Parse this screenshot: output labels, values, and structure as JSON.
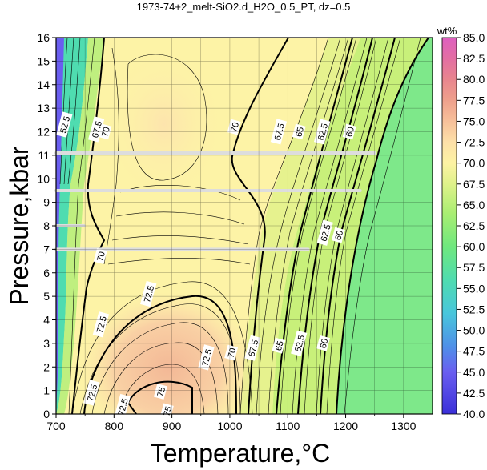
{
  "chart_data": {
    "type": "heatmap",
    "title": "1973-74+2_melt-SiO2.d_H2O_0.5_PT, dz=0.5",
    "xlabel": "Temperature,°C",
    "ylabel": "Pressure,kbar",
    "colorbar_label": "wt%",
    "xlim": [
      700,
      1350
    ],
    "ylim": [
      0,
      16
    ],
    "x_ticks": [
      700,
      800,
      900,
      1000,
      1100,
      1200,
      1300
    ],
    "y_ticks": [
      0,
      1,
      2,
      3,
      4,
      5,
      6,
      7,
      8,
      9,
      10,
      11,
      12,
      13,
      14,
      15,
      16
    ],
    "colorbar_range": [
      40.0,
      85.0
    ],
    "colorbar_ticks": [
      "40.0",
      "42.5",
      "45.0",
      "47.5",
      "50.0",
      "52.5",
      "55.0",
      "57.5",
      "60.0",
      "62.5",
      "65.0",
      "67.5",
      "70.0",
      "72.5",
      "75.0",
      "77.5",
      "80.0",
      "82.5",
      "85.0"
    ],
    "colorbar_stops": [
      {
        "v": 40.0,
        "c": "#3a2fd8"
      },
      {
        "v": 45.0,
        "c": "#6a5ef0"
      },
      {
        "v": 48.0,
        "c": "#4f8fe8"
      },
      {
        "v": 52.0,
        "c": "#48c6dc"
      },
      {
        "v": 56.0,
        "c": "#4fdcb0"
      },
      {
        "v": 60.0,
        "c": "#6fe87e"
      },
      {
        "v": 64.0,
        "c": "#a9ee72"
      },
      {
        "v": 67.5,
        "c": "#dff28a"
      },
      {
        "v": 70.0,
        "c": "#fdf3a4"
      },
      {
        "v": 72.5,
        "c": "#fde0a8"
      },
      {
        "v": 75.0,
        "c": "#f7c09a"
      },
      {
        "v": 77.5,
        "c": "#eea08c"
      },
      {
        "v": 80.0,
        "c": "#e8858e"
      },
      {
        "v": 82.5,
        "c": "#e36ea3"
      },
      {
        "v": 85.0,
        "c": "#de5fc0"
      }
    ],
    "contour_labels": [
      {
        "text": "70",
        "x": 1008,
        "y": 12.2
      },
      {
        "text": "67.5",
        "x": 1085,
        "y": 12.0
      },
      {
        "text": "65",
        "x": 1120,
        "y": 12.0
      },
      {
        "text": "62.5",
        "x": 1160,
        "y": 12.0
      },
      {
        "text": "60",
        "x": 1207,
        "y": 12.0
      },
      {
        "text": "70",
        "x": 785,
        "y": 12.0
      },
      {
        "text": "67.5",
        "x": 770,
        "y": 12.1
      },
      {
        "text": "52.5",
        "x": 715,
        "y": 12.3
      },
      {
        "text": "62.5",
        "x": 1165,
        "y": 7.7
      },
      {
        "text": "60",
        "x": 1188,
        "y": 7.6
      },
      {
        "text": "70",
        "x": 777,
        "y": 6.7
      },
      {
        "text": "72.5",
        "x": 860,
        "y": 5.1
      },
      {
        "text": "72.5",
        "x": 778,
        "y": 3.8
      },
      {
        "text": "72.5",
        "x": 960,
        "y": 2.4
      },
      {
        "text": "70",
        "x": 1003,
        "y": 2.6
      },
      {
        "text": "67.5",
        "x": 1040,
        "y": 2.8
      },
      {
        "text": "65",
        "x": 1085,
        "y": 2.9
      },
      {
        "text": "62.5",
        "x": 1120,
        "y": 3.0
      },
      {
        "text": "60",
        "x": 1162,
        "y": 3.0
      },
      {
        "text": "75",
        "x": 881,
        "y": 0.95
      },
      {
        "text": "75",
        "x": 892,
        "y": 0.12
      },
      {
        "text": "72.5",
        "x": 815,
        "y": 0.3
      },
      {
        "text": "72.5",
        "x": 762,
        "y": 0.9
      }
    ],
    "white_lines": [
      {
        "p": 11.1,
        "t_end": 1250
      },
      {
        "p": 9.5,
        "t_end": 1225
      },
      {
        "p": 8.0,
        "t_end": 748
      },
      {
        "p": 7.0,
        "t_end": 1135
      }
    ]
  }
}
